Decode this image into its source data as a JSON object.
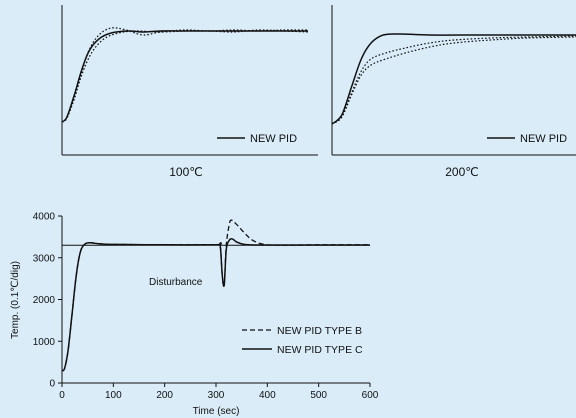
{
  "chart_data": [
    {
      "type": "line",
      "caption": "100℃",
      "axes": "no tick labels",
      "legend": {
        "label": "NEW PID",
        "placement": "bottom-right"
      },
      "series": [
        {
          "name": "NEW PID",
          "style": "solid",
          "points": [
            [
              0,
              0.03
            ],
            [
              0.02,
              0.08
            ],
            [
              0.05,
              0.3
            ],
            [
              0.08,
              0.55
            ],
            [
              0.11,
              0.74
            ],
            [
              0.15,
              0.86
            ],
            [
              0.2,
              0.92
            ],
            [
              0.27,
              0.94
            ],
            [
              0.33,
              0.93
            ],
            [
              0.4,
              0.94
            ],
            [
              0.5,
              0.94
            ],
            [
              0.6,
              0.94
            ],
            [
              0.7,
              0.94
            ],
            [
              0.8,
              0.94
            ],
            [
              0.9,
              0.94
            ],
            [
              1,
              0.94
            ]
          ]
        },
        {
          "style": "dotted",
          "points": [
            [
              0,
              0.03
            ],
            [
              0.02,
              0.07
            ],
            [
              0.05,
              0.28
            ],
            [
              0.08,
              0.53
            ],
            [
              0.11,
              0.75
            ],
            [
              0.15,
              0.9
            ],
            [
              0.2,
              0.97
            ],
            [
              0.26,
              0.95
            ],
            [
              0.33,
              0.9
            ],
            [
              0.4,
              0.93
            ],
            [
              0.5,
              0.95
            ],
            [
              0.6,
              0.94
            ],
            [
              0.7,
              0.95
            ],
            [
              0.8,
              0.94
            ],
            [
              0.9,
              0.95
            ],
            [
              1,
              0.95
            ]
          ]
        },
        {
          "style": "dotted",
          "points": [
            [
              0,
              0.03
            ],
            [
              0.02,
              0.07
            ],
            [
              0.05,
              0.26
            ],
            [
              0.08,
              0.5
            ],
            [
              0.12,
              0.72
            ],
            [
              0.17,
              0.86
            ],
            [
              0.23,
              0.92
            ],
            [
              0.3,
              0.94
            ],
            [
              0.4,
              0.93
            ],
            [
              0.5,
              0.94
            ],
            [
              0.6,
              0.94
            ],
            [
              0.7,
              0.93
            ],
            [
              0.8,
              0.95
            ],
            [
              0.9,
              0.94
            ],
            [
              1,
              0.93
            ]
          ]
        }
      ]
    },
    {
      "type": "line",
      "caption": "200℃",
      "axes": "no tick labels",
      "legend": {
        "label": "NEW PID",
        "placement": "bottom-right"
      },
      "series": [
        {
          "name": "NEW PID",
          "style": "solid",
          "points": [
            [
              0,
              0.01
            ],
            [
              0.04,
              0.1
            ],
            [
              0.08,
              0.38
            ],
            [
              0.12,
              0.66
            ],
            [
              0.16,
              0.82
            ],
            [
              0.21,
              0.9
            ],
            [
              0.28,
              0.91
            ],
            [
              0.4,
              0.9
            ],
            [
              0.6,
              0.9
            ],
            [
              0.8,
              0.9
            ],
            [
              1,
              0.9
            ]
          ]
        },
        {
          "style": "dotted",
          "points": [
            [
              0,
              0.01
            ],
            [
              0.04,
              0.08
            ],
            [
              0.08,
              0.32
            ],
            [
              0.12,
              0.54
            ],
            [
              0.16,
              0.66
            ],
            [
              0.22,
              0.72
            ],
            [
              0.3,
              0.77
            ],
            [
              0.4,
              0.82
            ],
            [
              0.5,
              0.85
            ],
            [
              0.65,
              0.87
            ],
            [
              0.8,
              0.88
            ],
            [
              1,
              0.89
            ]
          ]
        },
        {
          "style": "dotted",
          "points": [
            [
              0,
              0.01
            ],
            [
              0.04,
              0.08
            ],
            [
              0.08,
              0.3
            ],
            [
              0.12,
              0.5
            ],
            [
              0.16,
              0.6
            ],
            [
              0.22,
              0.66
            ],
            [
              0.3,
              0.72
            ],
            [
              0.4,
              0.78
            ],
            [
              0.5,
              0.82
            ],
            [
              0.65,
              0.85
            ],
            [
              0.8,
              0.87
            ],
            [
              1,
              0.88
            ]
          ]
        }
      ]
    },
    {
      "type": "line",
      "xlabel": "Time (sec)",
      "ylabel": "Temp. (0.1℃/dig)",
      "xlim": [
        0,
        600
      ],
      "ylim": [
        0,
        4000
      ],
      "xticks": [
        0,
        100,
        200,
        300,
        400,
        500,
        600
      ],
      "yticks": [
        0,
        1000,
        2000,
        3000,
        4000
      ],
      "setpoint": 3300,
      "annotations": [
        {
          "text": "Disturbance",
          "x": 310,
          "y": 2500
        }
      ],
      "legend": {
        "placement": "center-right"
      },
      "series": [
        {
          "name": "NEW PID TYPE B",
          "style": "dashed",
          "points": [
            [
              0,
              300
            ],
            [
              5,
              350
            ],
            [
              12,
              800
            ],
            [
              20,
              1700
            ],
            [
              28,
              2600
            ],
            [
              36,
              3150
            ],
            [
              45,
              3330
            ],
            [
              55,
              3360
            ],
            [
              70,
              3340
            ],
            [
              100,
              3320
            ],
            [
              200,
              3310
            ],
            [
              300,
              3310
            ],
            [
              308,
              3300
            ],
            [
              312,
              2600
            ],
            [
              316,
              2350
            ],
            [
              320,
              3300
            ],
            [
              326,
              3800
            ],
            [
              330,
              3900
            ],
            [
              340,
              3800
            ],
            [
              355,
              3600
            ],
            [
              370,
              3430
            ],
            [
              390,
              3330
            ],
            [
              420,
              3300
            ],
            [
              500,
              3310
            ],
            [
              600,
              3310
            ]
          ]
        },
        {
          "name": "NEW PID TYPE C",
          "style": "solid",
          "points": [
            [
              0,
              300
            ],
            [
              5,
              350
            ],
            [
              12,
              800
            ],
            [
              20,
              1700
            ],
            [
              28,
              2600
            ],
            [
              36,
              3150
            ],
            [
              45,
              3330
            ],
            [
              55,
              3360
            ],
            [
              70,
              3340
            ],
            [
              100,
              3320
            ],
            [
              200,
              3310
            ],
            [
              300,
              3310
            ],
            [
              308,
              3300
            ],
            [
              312,
              2600
            ],
            [
              316,
              2350
            ],
            [
              320,
              3200
            ],
            [
              326,
              3420
            ],
            [
              332,
              3450
            ],
            [
              340,
              3380
            ],
            [
              355,
              3320
            ],
            [
              380,
              3305
            ],
            [
              450,
              3305
            ],
            [
              600,
              3305
            ]
          ]
        }
      ]
    }
  ]
}
